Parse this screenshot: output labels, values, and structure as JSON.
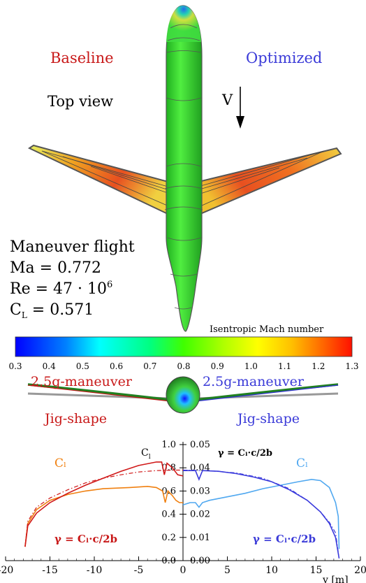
{
  "labels": {
    "baseline": "Baseline",
    "optimized": "Optimized",
    "top_view": "Top view",
    "velocity": "V",
    "flight_title": "Maneuver flight",
    "mach": "Ma = 0.772",
    "reynolds_prefix": "Re = 47 · 10",
    "reynolds_exp": "6",
    "cl_base": "C",
    "cl_sub": "L",
    "cl_value": " = 0.571",
    "colorbar_title": "Isentropic Mach number",
    "maneuver_left": "2.5g-maneuver",
    "maneuver_right": "2.5g-maneuver",
    "jig_left": "Jig-shape",
    "jig_right": "Jig-shape"
  },
  "colorbar": {
    "ticks": [
      "0.3",
      "0.4",
      "0.5",
      "0.6",
      "0.7",
      "0.8",
      "0.9",
      "1.0",
      "1.1",
      "1.2",
      "1.3"
    ],
    "stops": [
      "#0000ff",
      "#00aaff",
      "#00ffff",
      "#00ff80",
      "#40ff00",
      "#b0ff00",
      "#ffff00",
      "#ffc000",
      "#ff7000",
      "#ff2000"
    ]
  },
  "colors": {
    "baseline": "#d01818",
    "optimized": "#3a3adc",
    "baseline_cl": "#f08010",
    "optimized_cl": "#50a8f0",
    "fuselage": "#33dd33"
  },
  "chart_data": {
    "type": "line",
    "x": {
      "label": "y [m]",
      "ticks": [
        "-20",
        "-15",
        "-10",
        "-5",
        "0",
        "5",
        "10",
        "15",
        "20"
      ],
      "range": [
        -20,
        20
      ]
    },
    "y_left": {
      "label": "C",
      "label_sub": "l",
      "ticks": [
        "0.0",
        "0.2",
        "0.4",
        "0.6",
        "0.8",
        "1.0"
      ],
      "range": [
        0,
        1
      ]
    },
    "y_right": {
      "ticks": [
        "0.00",
        "0.01",
        "0.02",
        "0.03",
        "0.04",
        "0.05"
      ],
      "range": [
        0,
        0.05
      ]
    },
    "annotations": {
      "gamma_top": "γ = Cₗ·c/2b",
      "gamma_left": "γ = Cₗ·c/2b",
      "gamma_right": "γ = Cₗ·c/2b",
      "cl_left": "Cₗ",
      "cl_right": "Cₗ"
    },
    "series": [
      {
        "side": "left",
        "kind": "Cl",
        "color": "#f08010",
        "points": [
          [
            -17.8,
            0.12
          ],
          [
            -17.5,
            0.32
          ],
          [
            -16.5,
            0.44
          ],
          [
            -15,
            0.52
          ],
          [
            -13,
            0.57
          ],
          [
            -11,
            0.6
          ],
          [
            -9,
            0.62
          ],
          [
            -6,
            0.63
          ],
          [
            -4,
            0.64
          ],
          [
            -3,
            0.63
          ],
          [
            -2.3,
            0.6
          ],
          [
            -2,
            0.5
          ],
          [
            -1.7,
            0.6
          ],
          [
            -1.2,
            0.56
          ],
          [
            -0.8,
            0.52
          ],
          [
            -0.4,
            0.5
          ],
          [
            0,
            0.5
          ]
        ]
      },
      {
        "side": "left",
        "kind": "gamma",
        "color": "#d01818",
        "points": [
          [
            -17.8,
            0.006
          ],
          [
            -17.5,
            0.015
          ],
          [
            -16.5,
            0.0205
          ],
          [
            -15,
            0.025
          ],
          [
            -13,
            0.029
          ],
          [
            -11,
            0.0325
          ],
          [
            -9,
            0.0355
          ],
          [
            -7,
            0.0385
          ],
          [
            -5,
            0.041
          ],
          [
            -3,
            0.0425
          ],
          [
            -2.4,
            0.0425
          ],
          [
            -2.1,
            0.037
          ],
          [
            -1.8,
            0.042
          ],
          [
            -1.2,
            0.04
          ],
          [
            -0.6,
            0.037
          ],
          [
            0,
            0.0365
          ]
        ]
      },
      {
        "side": "left",
        "kind": "gamma_ref",
        "color": "#d01818",
        "points": [
          [
            -17.8,
            0.006
          ],
          [
            -17.5,
            0.017
          ],
          [
            -16.5,
            0.023
          ],
          [
            -15,
            0.027
          ],
          [
            -13,
            0.0305
          ],
          [
            -11,
            0.0335
          ],
          [
            -9,
            0.0355
          ],
          [
            -7,
            0.037
          ],
          [
            -5,
            0.0382
          ],
          [
            -3,
            0.0388
          ],
          [
            -1,
            0.039
          ],
          [
            0,
            0.039
          ]
        ]
      },
      {
        "side": "right",
        "kind": "Cl",
        "color": "#50a8f0",
        "points": [
          [
            0,
            0.48
          ],
          [
            0.8,
            0.5
          ],
          [
            1.4,
            0.5
          ],
          [
            1.8,
            0.46
          ],
          [
            2.2,
            0.5
          ],
          [
            3,
            0.52
          ],
          [
            5,
            0.55
          ],
          [
            7,
            0.58
          ],
          [
            9,
            0.62
          ],
          [
            11,
            0.65
          ],
          [
            13,
            0.68
          ],
          [
            14.5,
            0.7
          ],
          [
            15.5,
            0.69
          ],
          [
            16.5,
            0.63
          ],
          [
            17.2,
            0.5
          ],
          [
            17.5,
            0.38
          ],
          [
            17.6,
            0.1
          ]
        ]
      },
      {
        "side": "right",
        "kind": "gamma",
        "color": "#3a3adc",
        "points": [
          [
            0,
            0.0388
          ],
          [
            1.4,
            0.0388
          ],
          [
            1.8,
            0.035
          ],
          [
            2.2,
            0.0388
          ],
          [
            4,
            0.0385
          ],
          [
            6,
            0.0375
          ],
          [
            8,
            0.036
          ],
          [
            10,
            0.034
          ],
          [
            12,
            0.0305
          ],
          [
            14,
            0.026
          ],
          [
            15.5,
            0.021
          ],
          [
            16.5,
            0.016
          ],
          [
            17.2,
            0.01
          ],
          [
            17.6,
            0.001
          ]
        ]
      },
      {
        "side": "right",
        "kind": "gamma_ref",
        "color": "#3a3adc",
        "points": [
          [
            0,
            0.039
          ],
          [
            3,
            0.0387
          ],
          [
            6,
            0.0378
          ],
          [
            9,
            0.0355
          ],
          [
            12,
            0.031
          ],
          [
            14,
            0.026
          ],
          [
            15.5,
            0.021
          ],
          [
            16.5,
            0.0165
          ],
          [
            17.2,
            0.012
          ],
          [
            17.6,
            0.001
          ]
        ]
      }
    ]
  }
}
